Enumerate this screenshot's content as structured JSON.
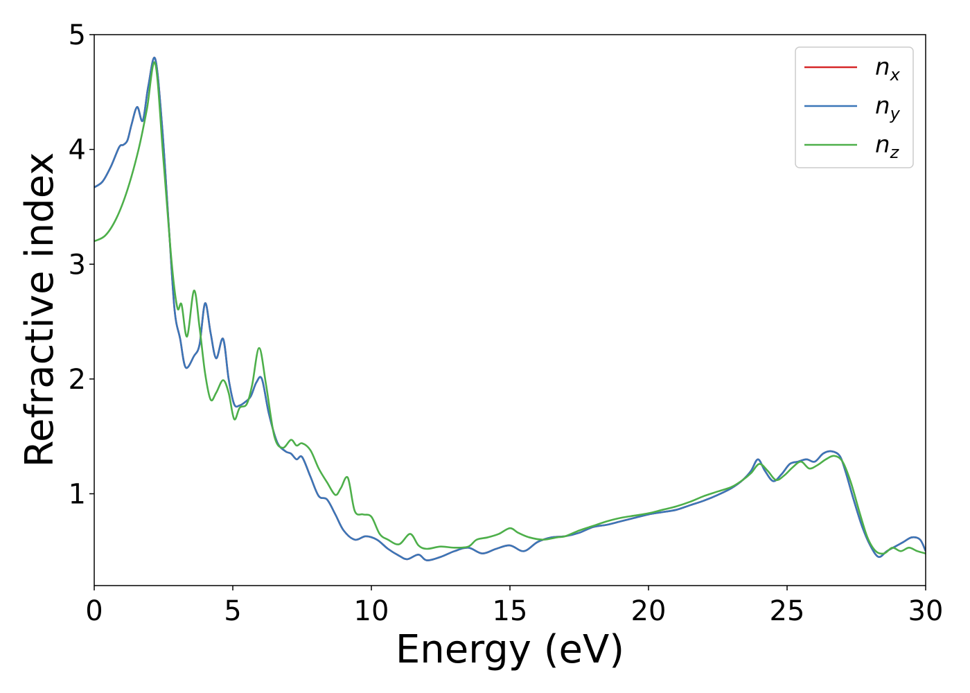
{
  "chart_data": {
    "type": "line",
    "xlabel": "Energy (eV)",
    "ylabel": "Refractive index",
    "xlim": [
      0,
      30
    ],
    "ylim": [
      0.2,
      5.0
    ],
    "xticks": [
      0,
      5,
      10,
      15,
      20,
      25,
      30
    ],
    "yticks": [
      1,
      2,
      3,
      4,
      5
    ],
    "grid": false,
    "legend_position": "top-right",
    "series": [
      {
        "name": "n_x",
        "label_base": "n",
        "label_sub": "x",
        "color": "#d62728",
        "x": [
          0,
          0.3,
          0.6,
          0.9,
          1.05,
          1.2,
          1.35,
          1.55,
          1.75,
          1.95,
          2.2,
          2.45,
          2.7,
          2.9,
          3.1,
          3.3,
          3.6,
          3.8,
          4.0,
          4.2,
          4.4,
          4.65,
          4.85,
          5.05,
          5.25,
          5.45,
          5.65,
          5.85,
          6.05,
          6.3,
          6.6,
          6.9,
          7.1,
          7.3,
          7.5,
          7.8,
          8.1,
          8.4,
          8.7,
          9.0,
          9.4,
          9.8,
          10.2,
          10.6,
          11.0,
          11.3,
          11.7,
          12.0,
          12.5,
          13.0,
          13.5,
          14.0,
          14.5,
          15.0,
          15.5,
          16.0,
          16.5,
          17.0,
          17.5,
          18.0,
          18.5,
          19.0,
          19.5,
          20.0,
          20.5,
          21.0,
          21.5,
          22.0,
          22.5,
          23.0,
          23.4,
          23.7,
          23.95,
          24.2,
          24.5,
          24.8,
          25.1,
          25.4,
          25.7,
          26.0,
          26.3,
          26.6,
          26.9,
          27.1,
          27.4,
          27.7,
          28.0,
          28.3,
          28.6,
          28.9,
          29.2,
          29.5,
          29.8,
          30.0
        ],
        "y": [
          3.67,
          3.72,
          3.85,
          4.02,
          4.04,
          4.08,
          4.22,
          4.37,
          4.25,
          4.55,
          4.79,
          4.2,
          3.3,
          2.6,
          2.35,
          2.1,
          2.2,
          2.3,
          2.66,
          2.4,
          2.18,
          2.35,
          2.0,
          1.78,
          1.77,
          1.8,
          1.85,
          1.97,
          2.0,
          1.7,
          1.45,
          1.37,
          1.35,
          1.3,
          1.32,
          1.15,
          0.98,
          0.95,
          0.82,
          0.68,
          0.6,
          0.63,
          0.6,
          0.52,
          0.46,
          0.43,
          0.47,
          0.42,
          0.45,
          0.5,
          0.53,
          0.48,
          0.52,
          0.55,
          0.5,
          0.58,
          0.62,
          0.63,
          0.66,
          0.71,
          0.73,
          0.76,
          0.79,
          0.82,
          0.84,
          0.86,
          0.9,
          0.94,
          0.99,
          1.05,
          1.12,
          1.2,
          1.3,
          1.2,
          1.11,
          1.17,
          1.26,
          1.28,
          1.3,
          1.28,
          1.35,
          1.37,
          1.33,
          1.2,
          0.95,
          0.72,
          0.55,
          0.45,
          0.5,
          0.54,
          0.58,
          0.62,
          0.6,
          0.5
        ]
      },
      {
        "name": "n_y",
        "label_base": "n",
        "label_sub": "y",
        "color": "#3a76b8",
        "x": [
          0,
          0.3,
          0.6,
          0.9,
          1.05,
          1.2,
          1.35,
          1.55,
          1.75,
          1.95,
          2.2,
          2.45,
          2.7,
          2.9,
          3.1,
          3.3,
          3.6,
          3.8,
          4.0,
          4.2,
          4.4,
          4.65,
          4.85,
          5.05,
          5.25,
          5.45,
          5.65,
          5.85,
          6.05,
          6.3,
          6.6,
          6.9,
          7.1,
          7.3,
          7.5,
          7.8,
          8.1,
          8.4,
          8.7,
          9.0,
          9.4,
          9.8,
          10.2,
          10.6,
          11.0,
          11.3,
          11.7,
          12.0,
          12.5,
          13.0,
          13.5,
          14.0,
          14.5,
          15.0,
          15.5,
          16.0,
          16.5,
          17.0,
          17.5,
          18.0,
          18.5,
          19.0,
          19.5,
          20.0,
          20.5,
          21.0,
          21.5,
          22.0,
          22.5,
          23.0,
          23.4,
          23.7,
          23.95,
          24.2,
          24.5,
          24.8,
          25.1,
          25.4,
          25.7,
          26.0,
          26.3,
          26.6,
          26.9,
          27.1,
          27.4,
          27.7,
          28.0,
          28.3,
          28.6,
          28.9,
          29.2,
          29.5,
          29.8,
          30.0
        ],
        "y": [
          3.67,
          3.72,
          3.85,
          4.02,
          4.04,
          4.08,
          4.22,
          4.37,
          4.25,
          4.55,
          4.79,
          4.2,
          3.3,
          2.6,
          2.35,
          2.1,
          2.2,
          2.3,
          2.66,
          2.4,
          2.18,
          2.35,
          2.0,
          1.78,
          1.77,
          1.8,
          1.85,
          1.97,
          2.0,
          1.7,
          1.45,
          1.37,
          1.35,
          1.3,
          1.32,
          1.15,
          0.98,
          0.95,
          0.82,
          0.68,
          0.6,
          0.63,
          0.6,
          0.52,
          0.46,
          0.43,
          0.47,
          0.42,
          0.45,
          0.5,
          0.53,
          0.48,
          0.52,
          0.55,
          0.5,
          0.58,
          0.62,
          0.63,
          0.66,
          0.71,
          0.73,
          0.76,
          0.79,
          0.82,
          0.84,
          0.86,
          0.9,
          0.94,
          0.99,
          1.05,
          1.12,
          1.2,
          1.3,
          1.2,
          1.11,
          1.17,
          1.26,
          1.28,
          1.3,
          1.28,
          1.35,
          1.37,
          1.33,
          1.2,
          0.95,
          0.72,
          0.55,
          0.45,
          0.5,
          0.54,
          0.58,
          0.62,
          0.6,
          0.5
        ]
      },
      {
        "name": "n_z",
        "label_base": "n",
        "label_sub": "z",
        "color": "#4daf4a",
        "x": [
          0,
          0.4,
          0.8,
          1.2,
          1.6,
          1.9,
          2.2,
          2.5,
          2.8,
          3.0,
          3.15,
          3.35,
          3.6,
          3.8,
          4.0,
          4.2,
          4.4,
          4.65,
          4.85,
          5.05,
          5.25,
          5.5,
          5.7,
          5.95,
          6.2,
          6.5,
          6.8,
          7.1,
          7.3,
          7.5,
          7.8,
          8.1,
          8.4,
          8.7,
          8.9,
          9.15,
          9.4,
          9.7,
          10.0,
          10.3,
          10.6,
          11.0,
          11.4,
          11.7,
          12.0,
          12.5,
          13.0,
          13.5,
          13.8,
          14.2,
          14.6,
          15.0,
          15.3,
          15.7,
          16.2,
          16.7,
          17.0,
          17.5,
          18.0,
          18.5,
          19.0,
          19.5,
          20.0,
          20.5,
          21.0,
          21.5,
          22.0,
          22.5,
          23.0,
          23.4,
          23.7,
          24.0,
          24.3,
          24.6,
          24.9,
          25.2,
          25.5,
          25.8,
          26.1,
          26.4,
          26.7,
          27.0,
          27.3,
          27.6,
          27.9,
          28.2,
          28.5,
          28.8,
          29.1,
          29.4,
          29.7,
          30.0
        ],
        "y": [
          3.2,
          3.25,
          3.4,
          3.65,
          4.0,
          4.35,
          4.75,
          3.9,
          3.0,
          2.62,
          2.65,
          2.37,
          2.77,
          2.45,
          2.05,
          1.82,
          1.88,
          1.99,
          1.88,
          1.65,
          1.75,
          1.78,
          1.95,
          2.27,
          1.95,
          1.5,
          1.4,
          1.47,
          1.42,
          1.44,
          1.38,
          1.22,
          1.1,
          0.99,
          1.05,
          1.14,
          0.85,
          0.82,
          0.8,
          0.65,
          0.6,
          0.56,
          0.65,
          0.55,
          0.52,
          0.54,
          0.53,
          0.54,
          0.6,
          0.62,
          0.65,
          0.7,
          0.66,
          0.62,
          0.6,
          0.62,
          0.63,
          0.68,
          0.72,
          0.76,
          0.79,
          0.81,
          0.83,
          0.86,
          0.89,
          0.93,
          0.98,
          1.02,
          1.06,
          1.12,
          1.18,
          1.26,
          1.2,
          1.12,
          1.16,
          1.23,
          1.28,
          1.22,
          1.25,
          1.3,
          1.33,
          1.28,
          1.1,
          0.85,
          0.62,
          0.5,
          0.48,
          0.53,
          0.5,
          0.53,
          0.5,
          0.48
        ]
      }
    ]
  }
}
